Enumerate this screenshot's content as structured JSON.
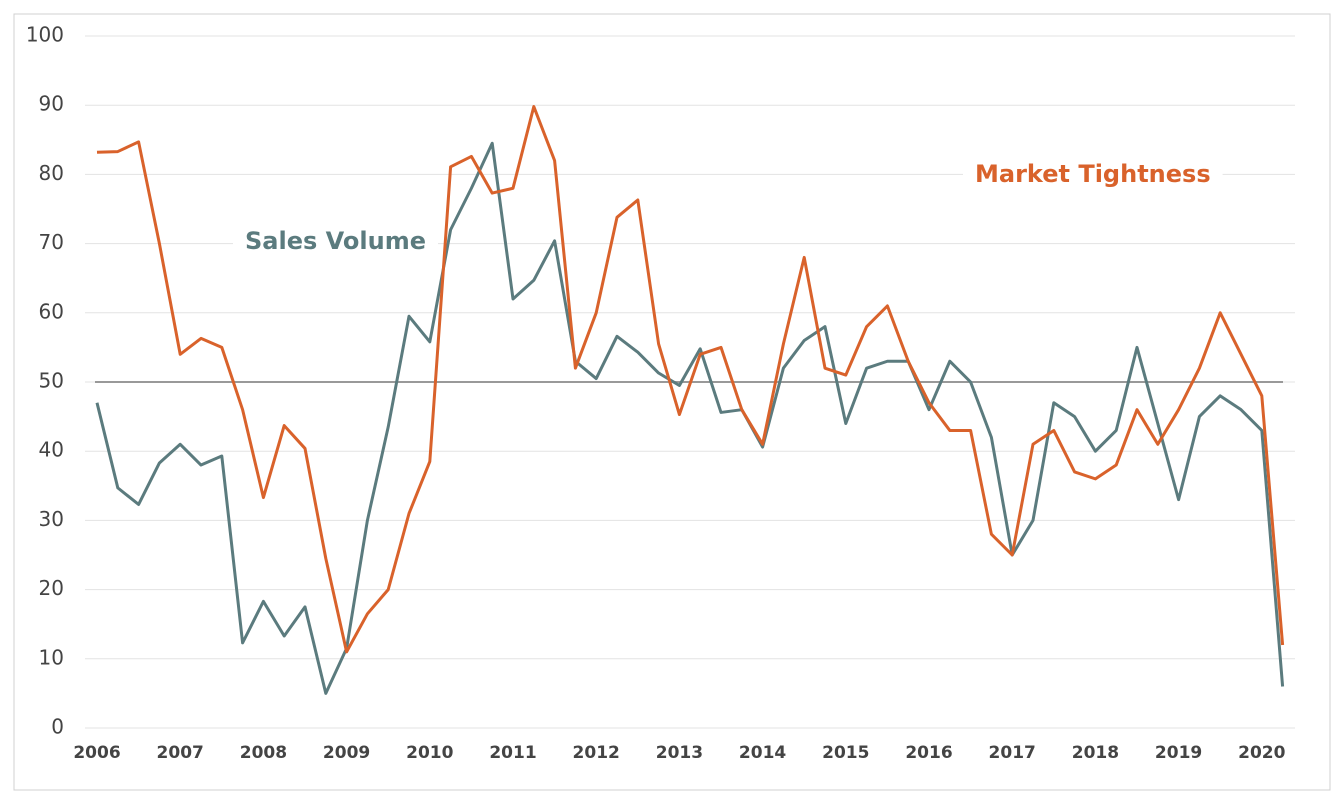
{
  "chart_data": {
    "type": "line",
    "categories": [
      "2006",
      null,
      null,
      null,
      "2007",
      null,
      null,
      null,
      "2008",
      null,
      null,
      null,
      "2009",
      null,
      null,
      null,
      "2010",
      null,
      null,
      null,
      "2011",
      null,
      null,
      null,
      "2012",
      null,
      null,
      null,
      "2013",
      null,
      null,
      null,
      "2014",
      null,
      null,
      null,
      "2015",
      null,
      null,
      null,
      "2016",
      null,
      null,
      null,
      "2017",
      null,
      null,
      null,
      "2018",
      null,
      null,
      null,
      "2019",
      null,
      null,
      null,
      "2020",
      null
    ],
    "series": [
      {
        "name": "Sales Volume",
        "color": "#5b7b7e",
        "values": [
          47,
          34.7,
          32.3,
          38.3,
          41,
          38,
          39.3,
          12.3,
          18.3,
          13.3,
          17.5,
          5,
          11.5,
          30,
          43.5,
          59.5,
          55.8,
          72,
          78,
          84.5,
          62,
          64.7,
          70.4,
          53,
          50.5,
          56.6,
          54.3,
          51.3,
          49.5,
          54.8,
          45.6,
          46,
          40.6,
          52,
          56,
          58,
          44,
          52,
          53,
          53,
          46,
          53,
          50,
          42,
          25,
          30,
          47,
          45,
          40,
          43,
          55,
          44,
          33,
          45,
          48,
          46,
          43,
          6
        ]
      },
      {
        "name": "Market Tightness",
        "color": "#d9622b",
        "values": [
          83.2,
          83.3,
          84.7,
          70,
          54,
          56.3,
          55,
          46,
          33.3,
          43.7,
          40.4,
          24.5,
          11,
          16.5,
          20,
          31,
          38.5,
          81.1,
          82.6,
          77.3,
          78,
          89.8,
          82,
          52,
          60,
          73.8,
          76.3,
          55.5,
          45.3,
          54,
          55,
          46,
          41,
          55.5,
          68,
          52,
          51,
          58,
          61,
          53,
          47,
          43,
          43,
          28,
          25,
          41,
          43,
          37,
          36,
          38,
          46,
          41,
          46,
          52,
          60,
          54,
          48,
          12
        ]
      }
    ],
    "reference_line": 50,
    "ylim": [
      0,
      100
    ],
    "yticks": [
      0,
      10,
      20,
      30,
      40,
      50,
      60,
      70,
      80,
      90,
      100
    ],
    "grid": true
  }
}
